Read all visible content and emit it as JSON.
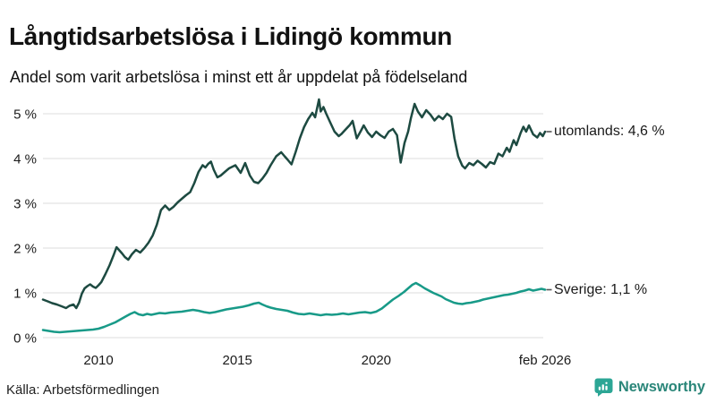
{
  "footer": {
    "source": "Källa: Arbetsförmedlingen",
    "brand": "Newsworthy"
  },
  "icons": {
    "brand_logo": "speech-bubble-with-bar-chart"
  },
  "colors": {
    "background": "#ffffff",
    "grid": "#dedede",
    "text": "#1a1a1a",
    "connector": "#555555",
    "brand_icon_teal": "#2ca695",
    "brand_text_teal": "#2a8679"
  },
  "chart_data": {
    "type": "line",
    "title": "Långtidsarbetslösa i Lidingö kommun",
    "subtitle": "Andel som varit arbetslösa i minst ett år uppdelat på födelseland",
    "x_domain": [
      2008.0,
      2026.08
    ],
    "ylim": [
      0,
      5.5
    ],
    "grid": "horizontal-only",
    "legend_position": "end-of-line-labels",
    "y_ticks": [
      {
        "value": 0,
        "label": "0 %"
      },
      {
        "value": 1,
        "label": "1 %"
      },
      {
        "value": 2,
        "label": "2 %"
      },
      {
        "value": 3,
        "label": "3 %"
      },
      {
        "value": 4,
        "label": "4 %"
      },
      {
        "value": 5,
        "label": "5 %"
      }
    ],
    "x_ticks": [
      {
        "value": 2010,
        "label": "2010"
      },
      {
        "value": 2015,
        "label": "2015"
      },
      {
        "value": 2020,
        "label": "2020"
      },
      {
        "value": 2026.08,
        "label": "feb 2026"
      }
    ],
    "series": [
      {
        "name": "utomlands",
        "end_label": "utomlands: 4,6 %",
        "latest_value": 4.6,
        "color": "#1d4a41",
        "points": [
          [
            2008.0,
            0.85
          ],
          [
            2008.17,
            0.81
          ],
          [
            2008.33,
            0.77
          ],
          [
            2008.5,
            0.74
          ],
          [
            2008.67,
            0.7
          ],
          [
            2008.83,
            0.66
          ],
          [
            2008.95,
            0.71
          ],
          [
            2009.1,
            0.74
          ],
          [
            2009.2,
            0.66
          ],
          [
            2009.3,
            0.78
          ],
          [
            2009.4,
            0.98
          ],
          [
            2009.5,
            1.1
          ],
          [
            2009.6,
            1.15
          ],
          [
            2009.7,
            1.19
          ],
          [
            2009.8,
            1.14
          ],
          [
            2009.9,
            1.11
          ],
          [
            2010.0,
            1.17
          ],
          [
            2010.1,
            1.24
          ],
          [
            2010.25,
            1.42
          ],
          [
            2010.4,
            1.62
          ],
          [
            2010.55,
            1.85
          ],
          [
            2010.65,
            2.02
          ],
          [
            2010.75,
            1.95
          ],
          [
            2010.85,
            1.88
          ],
          [
            2010.95,
            1.8
          ],
          [
            2011.07,
            1.74
          ],
          [
            2011.2,
            1.86
          ],
          [
            2011.35,
            1.96
          ],
          [
            2011.5,
            1.9
          ],
          [
            2011.65,
            2.0
          ],
          [
            2011.8,
            2.12
          ],
          [
            2011.95,
            2.28
          ],
          [
            2012.1,
            2.52
          ],
          [
            2012.25,
            2.85
          ],
          [
            2012.4,
            2.95
          ],
          [
            2012.55,
            2.85
          ],
          [
            2012.7,
            2.92
          ],
          [
            2012.85,
            3.02
          ],
          [
            2013.0,
            3.1
          ],
          [
            2013.15,
            3.18
          ],
          [
            2013.3,
            3.25
          ],
          [
            2013.45,
            3.45
          ],
          [
            2013.6,
            3.7
          ],
          [
            2013.75,
            3.85
          ],
          [
            2013.85,
            3.8
          ],
          [
            2013.95,
            3.88
          ],
          [
            2014.05,
            3.93
          ],
          [
            2014.15,
            3.75
          ],
          [
            2014.28,
            3.58
          ],
          [
            2014.4,
            3.62
          ],
          [
            2014.55,
            3.7
          ],
          [
            2014.7,
            3.78
          ],
          [
            2014.93,
            3.85
          ],
          [
            2015.12,
            3.68
          ],
          [
            2015.28,
            3.9
          ],
          [
            2015.45,
            3.62
          ],
          [
            2015.6,
            3.48
          ],
          [
            2015.75,
            3.45
          ],
          [
            2015.9,
            3.55
          ],
          [
            2016.05,
            3.68
          ],
          [
            2016.2,
            3.85
          ],
          [
            2016.4,
            4.05
          ],
          [
            2016.58,
            4.14
          ],
          [
            2016.7,
            4.05
          ],
          [
            2016.8,
            3.98
          ],
          [
            2016.95,
            3.87
          ],
          [
            2017.1,
            4.15
          ],
          [
            2017.25,
            4.45
          ],
          [
            2017.4,
            4.7
          ],
          [
            2017.55,
            4.88
          ],
          [
            2017.7,
            5.02
          ],
          [
            2017.8,
            4.92
          ],
          [
            2017.94,
            5.32
          ],
          [
            2018.0,
            5.05
          ],
          [
            2018.1,
            5.15
          ],
          [
            2018.2,
            5.0
          ],
          [
            2018.35,
            4.8
          ],
          [
            2018.5,
            4.6
          ],
          [
            2018.65,
            4.5
          ],
          [
            2018.75,
            4.55
          ],
          [
            2018.9,
            4.65
          ],
          [
            2019.05,
            4.75
          ],
          [
            2019.15,
            4.84
          ],
          [
            2019.3,
            4.45
          ],
          [
            2019.45,
            4.62
          ],
          [
            2019.55,
            4.74
          ],
          [
            2019.7,
            4.58
          ],
          [
            2019.85,
            4.48
          ],
          [
            2020.0,
            4.6
          ],
          [
            2020.15,
            4.52
          ],
          [
            2020.3,
            4.46
          ],
          [
            2020.45,
            4.6
          ],
          [
            2020.6,
            4.66
          ],
          [
            2020.75,
            4.52
          ],
          [
            2020.88,
            3.91
          ],
          [
            2021.02,
            4.35
          ],
          [
            2021.15,
            4.6
          ],
          [
            2021.25,
            4.9
          ],
          [
            2021.38,
            5.22
          ],
          [
            2021.5,
            5.05
          ],
          [
            2021.65,
            4.92
          ],
          [
            2021.8,
            5.08
          ],
          [
            2021.95,
            4.98
          ],
          [
            2022.1,
            4.85
          ],
          [
            2022.25,
            4.95
          ],
          [
            2022.4,
            4.88
          ],
          [
            2022.55,
            5.0
          ],
          [
            2022.7,
            4.93
          ],
          [
            2022.82,
            4.45
          ],
          [
            2022.95,
            4.05
          ],
          [
            2023.1,
            3.84
          ],
          [
            2023.2,
            3.78
          ],
          [
            2023.35,
            3.9
          ],
          [
            2023.5,
            3.85
          ],
          [
            2023.65,
            3.95
          ],
          [
            2023.8,
            3.88
          ],
          [
            2023.95,
            3.8
          ],
          [
            2024.1,
            3.92
          ],
          [
            2024.25,
            3.88
          ],
          [
            2024.4,
            4.11
          ],
          [
            2024.55,
            4.05
          ],
          [
            2024.7,
            4.24
          ],
          [
            2024.8,
            4.15
          ],
          [
            2024.95,
            4.41
          ],
          [
            2025.05,
            4.3
          ],
          [
            2025.2,
            4.57
          ],
          [
            2025.3,
            4.71
          ],
          [
            2025.4,
            4.6
          ],
          [
            2025.5,
            4.74
          ],
          [
            2025.65,
            4.54
          ],
          [
            2025.8,
            4.47
          ],
          [
            2025.9,
            4.57
          ],
          [
            2026.0,
            4.5
          ],
          [
            2026.08,
            4.6
          ]
        ]
      },
      {
        "name": "Sverige",
        "end_label": "Sverige: 1,1 %",
        "latest_value": 1.1,
        "color": "#189a88",
        "points": [
          [
            2008.0,
            0.17
          ],
          [
            2008.2,
            0.15
          ],
          [
            2008.4,
            0.13
          ],
          [
            2008.6,
            0.12
          ],
          [
            2008.8,
            0.13
          ],
          [
            2009.0,
            0.14
          ],
          [
            2009.2,
            0.15
          ],
          [
            2009.4,
            0.16
          ],
          [
            2009.6,
            0.17
          ],
          [
            2009.8,
            0.18
          ],
          [
            2010.0,
            0.2
          ],
          [
            2010.2,
            0.24
          ],
          [
            2010.4,
            0.29
          ],
          [
            2010.6,
            0.34
          ],
          [
            2010.8,
            0.41
          ],
          [
            2011.0,
            0.48
          ],
          [
            2011.15,
            0.53
          ],
          [
            2011.3,
            0.57
          ],
          [
            2011.45,
            0.52
          ],
          [
            2011.6,
            0.5
          ],
          [
            2011.75,
            0.53
          ],
          [
            2011.9,
            0.51
          ],
          [
            2012.05,
            0.53
          ],
          [
            2012.2,
            0.55
          ],
          [
            2012.4,
            0.54
          ],
          [
            2012.6,
            0.56
          ],
          [
            2012.8,
            0.57
          ],
          [
            2013.0,
            0.58
          ],
          [
            2013.2,
            0.6
          ],
          [
            2013.4,
            0.62
          ],
          [
            2013.6,
            0.6
          ],
          [
            2013.8,
            0.57
          ],
          [
            2014.0,
            0.55
          ],
          [
            2014.2,
            0.57
          ],
          [
            2014.4,
            0.6
          ],
          [
            2014.6,
            0.63
          ],
          [
            2014.8,
            0.65
          ],
          [
            2015.0,
            0.67
          ],
          [
            2015.2,
            0.69
          ],
          [
            2015.4,
            0.72
          ],
          [
            2015.6,
            0.76
          ],
          [
            2015.77,
            0.78
          ],
          [
            2015.9,
            0.74
          ],
          [
            2016.05,
            0.7
          ],
          [
            2016.2,
            0.67
          ],
          [
            2016.4,
            0.64
          ],
          [
            2016.6,
            0.62
          ],
          [
            2016.8,
            0.6
          ],
          [
            2017.0,
            0.56
          ],
          [
            2017.2,
            0.53
          ],
          [
            2017.4,
            0.52
          ],
          [
            2017.6,
            0.54
          ],
          [
            2017.8,
            0.52
          ],
          [
            2018.0,
            0.5
          ],
          [
            2018.2,
            0.52
          ],
          [
            2018.4,
            0.51
          ],
          [
            2018.6,
            0.52
          ],
          [
            2018.8,
            0.54
          ],
          [
            2019.0,
            0.52
          ],
          [
            2019.2,
            0.54
          ],
          [
            2019.4,
            0.56
          ],
          [
            2019.6,
            0.57
          ],
          [
            2019.8,
            0.55
          ],
          [
            2020.0,
            0.58
          ],
          [
            2020.2,
            0.65
          ],
          [
            2020.4,
            0.75
          ],
          [
            2020.6,
            0.85
          ],
          [
            2020.8,
            0.93
          ],
          [
            2021.0,
            1.02
          ],
          [
            2021.15,
            1.1
          ],
          [
            2021.3,
            1.18
          ],
          [
            2021.43,
            1.22
          ],
          [
            2021.6,
            1.16
          ],
          [
            2021.75,
            1.1
          ],
          [
            2021.9,
            1.05
          ],
          [
            2022.05,
            1.0
          ],
          [
            2022.2,
            0.96
          ],
          [
            2022.35,
            0.92
          ],
          [
            2022.5,
            0.86
          ],
          [
            2022.65,
            0.82
          ],
          [
            2022.8,
            0.78
          ],
          [
            2022.95,
            0.76
          ],
          [
            2023.1,
            0.75
          ],
          [
            2023.25,
            0.77
          ],
          [
            2023.4,
            0.78
          ],
          [
            2023.55,
            0.8
          ],
          [
            2023.7,
            0.82
          ],
          [
            2023.85,
            0.85
          ],
          [
            2024.0,
            0.87
          ],
          [
            2024.15,
            0.89
          ],
          [
            2024.3,
            0.91
          ],
          [
            2024.45,
            0.93
          ],
          [
            2024.6,
            0.95
          ],
          [
            2024.75,
            0.96
          ],
          [
            2024.9,
            0.98
          ],
          [
            2025.05,
            1.0
          ],
          [
            2025.2,
            1.03
          ],
          [
            2025.35,
            1.05
          ],
          [
            2025.5,
            1.08
          ],
          [
            2025.65,
            1.05
          ],
          [
            2025.8,
            1.07
          ],
          [
            2025.95,
            1.09
          ],
          [
            2026.08,
            1.07
          ]
        ]
      }
    ]
  }
}
